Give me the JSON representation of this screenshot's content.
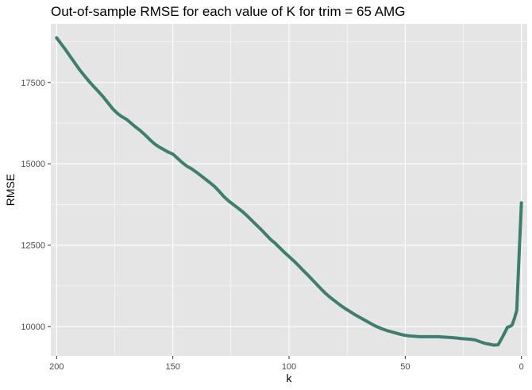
{
  "chart_data": {
    "type": "line",
    "title": "Out-of-sample RMSE for each value of K for trim = 65 AMG",
    "xlabel": "k",
    "ylabel": "RMSE",
    "x_reversed": true,
    "xlim": [
      202.5,
      -2.5
    ],
    "ylim": [
      9100,
      19300
    ],
    "x_ticks": [
      200,
      150,
      100,
      50,
      0
    ],
    "y_ticks": [
      10000,
      12500,
      15000,
      17500
    ],
    "x_tick_labels": [
      "200",
      "150",
      "100",
      "50",
      "0"
    ],
    "y_tick_labels": [
      "10000",
      "12500",
      "15000",
      "17500"
    ],
    "grid": true,
    "legend": "none",
    "colors": {
      "panel": "#e5e5e5",
      "grid_major": "#ffffff",
      "line": "#3d7f6e",
      "tick_label": "#4d4d4d"
    },
    "series": [
      {
        "x": [
          200,
          198,
          196,
          194,
          192,
          190,
          188,
          186,
          184,
          182,
          180,
          178,
          176,
          174,
          172,
          170,
          168,
          166,
          164,
          162,
          160,
          158,
          156,
          154,
          152,
          150,
          148,
          146,
          144,
          142,
          140,
          138,
          136,
          134,
          132,
          130,
          128,
          126,
          124,
          122,
          120,
          118,
          116,
          114,
          112,
          110,
          108,
          106,
          104,
          102,
          100,
          98,
          96,
          94,
          92,
          90,
          88,
          86,
          84,
          82,
          80,
          78,
          76,
          74,
          72,
          70,
          68,
          66,
          64,
          62,
          60,
          58,
          56,
          54,
          52,
          50,
          48,
          46,
          44,
          42,
          40,
          38,
          36,
          34,
          32,
          30,
          28,
          26,
          24,
          22,
          20,
          18,
          16,
          14,
          12,
          10,
          8,
          6,
          5,
          4,
          3,
          2,
          1,
          0
        ],
        "values": [
          18870,
          18680,
          18490,
          18280,
          18080,
          17880,
          17700,
          17530,
          17370,
          17220,
          17060,
          16880,
          16700,
          16560,
          16450,
          16370,
          16250,
          16130,
          16020,
          15890,
          15750,
          15620,
          15520,
          15440,
          15360,
          15300,
          15170,
          15040,
          14930,
          14850,
          14750,
          14640,
          14530,
          14420,
          14300,
          14150,
          13990,
          13860,
          13750,
          13640,
          13530,
          13400,
          13260,
          13120,
          12980,
          12830,
          12680,
          12560,
          12420,
          12280,
          12150,
          12020,
          11880,
          11730,
          11590,
          11440,
          11290,
          11140,
          11000,
          10880,
          10770,
          10660,
          10560,
          10470,
          10380,
          10300,
          10220,
          10140,
          10060,
          9990,
          9930,
          9880,
          9840,
          9800,
          9760,
          9730,
          9710,
          9700,
          9690,
          9690,
          9690,
          9690,
          9690,
          9680,
          9670,
          9660,
          9650,
          9630,
          9620,
          9610,
          9590,
          9540,
          9490,
          9460,
          9430,
          9440,
          9700,
          9980,
          10000,
          10050,
          10250,
          10500,
          12200,
          13800
        ]
      }
    ]
  }
}
